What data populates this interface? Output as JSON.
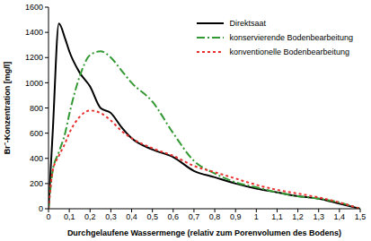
{
  "chart_data": {
    "type": "line",
    "x_label": "Durchgelaufene Wassermenge (relativ zum Porenvolumen des Bodens)",
    "y_label": "Br⁻-Konzentration [mg/l]",
    "x": [
      0,
      0.02,
      0.05,
      0.08,
      0.1,
      0.15,
      0.2,
      0.25,
      0.3,
      0.35,
      0.4,
      0.5,
      0.6,
      0.7,
      0.8,
      0.9,
      1.0,
      1.1,
      1.2,
      1.3,
      1.4,
      1.5
    ],
    "series": [
      {
        "name": "Direktsaat",
        "color": "#000000",
        "line_style": "solid",
        "values": [
          0,
          600,
          1470,
          1350,
          1250,
          1080,
          970,
          800,
          760,
          650,
          560,
          470,
          410,
          300,
          250,
          200,
          160,
          130,
          100,
          80,
          40,
          0
        ]
      },
      {
        "name": "konservierende Bodenbearbeitung",
        "color": "#339933",
        "line_style": "dashdot",
        "values": [
          0,
          300,
          450,
          600,
          750,
          1050,
          1220,
          1250,
          1200,
          1100,
          1000,
          850,
          600,
          380,
          280,
          210,
          170,
          130,
          100,
          80,
          50,
          0
        ]
      },
      {
        "name": "konventionelle Bodenbearbeitung",
        "color": "#e8312f",
        "line_style": "dotted",
        "values": [
          0,
          300,
          420,
          520,
          600,
          730,
          780,
          760,
          700,
          620,
          560,
          480,
          420,
          340,
          290,
          240,
          190,
          150,
          120,
          90,
          50,
          0
        ]
      }
    ],
    "xlim": [
      0,
      1.5
    ],
    "xticks": [
      0,
      {
        "value": 0.1,
        "label": "0,1"
      },
      {
        "value": 0.2,
        "label": "0,2"
      },
      {
        "value": 0.3,
        "label": "0,3"
      },
      {
        "value": 0.4,
        "label": "0,4"
      },
      {
        "value": 0.5,
        "label": "0,5"
      },
      {
        "value": 0.6,
        "label": "0,6"
      },
      {
        "value": 0.7,
        "label": "0,7"
      },
      {
        "value": 0.8,
        "label": "0,8"
      },
      {
        "value": 0.9,
        "label": "0,9"
      },
      1,
      {
        "value": 1.1,
        "label": "1,1"
      },
      {
        "value": 1.2,
        "label": "1,2"
      },
      {
        "value": 1.3,
        "label": "1,3"
      },
      {
        "value": 1.4,
        "label": "1,4"
      },
      {
        "value": 1.5,
        "label": "1,5"
      }
    ],
    "ylim": [
      0,
      1600
    ],
    "yticks": [
      0,
      200,
      400,
      600,
      800,
      1000,
      1200,
      1400,
      1600
    ],
    "grid": false,
    "legend": "top-right"
  }
}
